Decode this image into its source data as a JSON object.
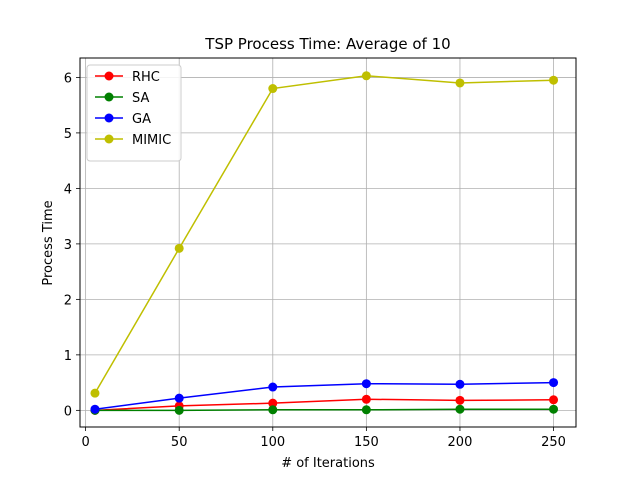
{
  "chart_data": {
    "type": "line",
    "title": "TSP Process Time: Average of 10",
    "xlabel": "# of Iterations",
    "ylabel": "Process Time",
    "xlim": [
      -3,
      262
    ],
    "ylim": [
      -0.3,
      6.35
    ],
    "xticks": [
      0,
      50,
      100,
      150,
      200,
      250
    ],
    "yticks": [
      0,
      1,
      2,
      3,
      4,
      5,
      6
    ],
    "grid": true,
    "legend_position": "top-left",
    "x": [
      5,
      50,
      100,
      150,
      200,
      250
    ],
    "series": [
      {
        "name": "RHC",
        "color": "#ff0000",
        "values": [
          0.0,
          0.08,
          0.13,
          0.2,
          0.18,
          0.19
        ]
      },
      {
        "name": "SA",
        "color": "#008000",
        "values": [
          0.0,
          0.0,
          0.01,
          0.01,
          0.02,
          0.02
        ]
      },
      {
        "name": "GA",
        "color": "#0000ff",
        "values": [
          0.02,
          0.22,
          0.42,
          0.48,
          0.47,
          0.5
        ]
      },
      {
        "name": "MIMIC",
        "color": "#bfbf00",
        "values": [
          0.31,
          2.92,
          5.8,
          6.03,
          5.9,
          5.95
        ]
      }
    ]
  }
}
